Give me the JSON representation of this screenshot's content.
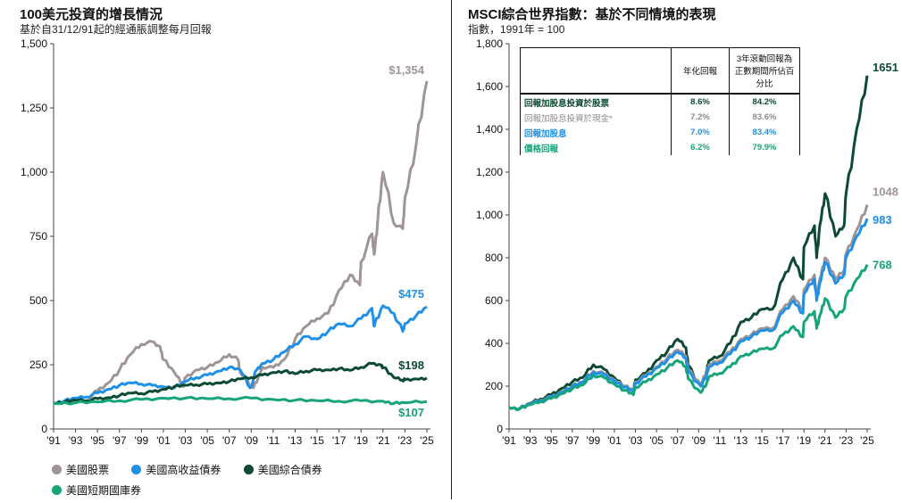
{
  "left": {
    "title": "100美元投資的增長情況",
    "subtitle": "基於自31/12/91起的經通脹調整每月回報"
  },
  "right": {
    "title": "MSCI綜合世界指數：基於不同情境的表現",
    "subtitle": "指數，1991年 = 100"
  },
  "legend": [
    {
      "label": "美國股票",
      "color": "#9e9594"
    },
    {
      "label": "美國高收益債券",
      "color": "#1e90e8"
    },
    {
      "label": "美國綜合債券",
      "color": "#0d4a32"
    },
    {
      "label": "美國短期國庫券",
      "color": "#16a57a"
    }
  ],
  "summary_table": {
    "headers": [
      "",
      "年化回報",
      "3年滾動回報為正數期間所佔百分比"
    ],
    "rows": [
      {
        "label": "回報加股息投資於股票",
        "annualized": "8.6%",
        "pct_positive": "84.2%",
        "color": "#0d4a32"
      },
      {
        "label": "回報加股息投資於現金*",
        "annualized": "7.2%",
        "pct_positive": "83.6%",
        "color": "#8f8a88"
      },
      {
        "label": "回報加股息",
        "annualized": "7.0%",
        "pct_positive": "83.4%",
        "color": "#1e90e8"
      },
      {
        "label": "價格回報",
        "annualized": "6.2%",
        "pct_positive": "79.9%",
        "color": "#16a57a"
      }
    ]
  },
  "chart_data": [
    {
      "type": "line",
      "title": "100美元投資的增長情況",
      "subtitle": "基於自31/12/91起的經通脹調整每月回報",
      "x_ticks": [
        "'91",
        "'93",
        "'95",
        "'97",
        "'99",
        "'01",
        "'03",
        "'05",
        "'07",
        "'09",
        "'11",
        "'13",
        "'15",
        "'17",
        "'19",
        "'21",
        "'23",
        "'25"
      ],
      "x_range": [
        1991,
        2025
      ],
      "ylim": [
        0,
        1500
      ],
      "y_ticks": [
        0,
        250,
        500,
        750,
        1000,
        1250,
        1500
      ],
      "y_tick_labels": [
        "0",
        "250",
        "500",
        "750",
        "1,000",
        "1,250",
        "1,500"
      ],
      "grid": false,
      "series": [
        {
          "name": "美國股票",
          "color": "#9e9594",
          "end_label": "$1,354",
          "x": [
            1991.0,
            1992,
            1993,
            1994,
            1995,
            1996,
            1997,
            1998,
            1999,
            2000,
            2000.7,
            2001,
            2002,
            2002.8,
            2003,
            2004,
            2005,
            2006,
            2007,
            2007.8,
            2008,
            2009.2,
            2009.8,
            2010,
            2011,
            2012,
            2013,
            2014,
            2015,
            2016,
            2017,
            2018,
            2018.9,
            2019,
            2020,
            2020.2,
            2020.5,
            2021,
            2022,
            2022.8,
            2023,
            2024,
            2025
          ],
          "y": [
            100,
            105,
            112,
            110,
            150,
            180,
            230,
            290,
            330,
            340,
            320,
            270,
            220,
            165,
            200,
            230,
            240,
            260,
            290,
            270,
            220,
            160,
            210,
            240,
            240,
            270,
            350,
            400,
            430,
            450,
            540,
            600,
            560,
            650,
            760,
            680,
            800,
            1000,
            800,
            780,
            900,
            1100,
            1354
          ]
        },
        {
          "name": "美國高收益債券",
          "color": "#1e90e8",
          "end_label": "$475",
          "x": [
            1991.0,
            1992,
            1993,
            1994,
            1995,
            1996,
            1997,
            1998,
            1999,
            2000,
            2001,
            2002,
            2003,
            2004,
            2005,
            2006,
            2007,
            2008,
            2008.9,
            2009.5,
            2010,
            2011,
            2012,
            2013,
            2014,
            2015,
            2016,
            2017,
            2018,
            2019,
            2020,
            2020.2,
            2021,
            2022,
            2022.8,
            2023,
            2024,
            2025
          ],
          "y": [
            100,
            110,
            120,
            125,
            140,
            155,
            170,
            180,
            175,
            170,
            165,
            160,
            185,
            200,
            210,
            225,
            240,
            230,
            160,
            230,
            255,
            270,
            300,
            330,
            360,
            350,
            380,
            410,
            400,
            430,
            470,
            400,
            480,
            450,
            380,
            410,
            440,
            475
          ]
        },
        {
          "name": "美國綜合債券",
          "color": "#0d4a32",
          "end_label": "$198",
          "x": [
            1991.0,
            1992,
            1993,
            1994,
            1995,
            1996,
            1997,
            1998,
            1999,
            2000,
            2001,
            2002,
            2003,
            2004,
            2005,
            2006,
            2007,
            2008,
            2009,
            2010,
            2011,
            2012,
            2013,
            2014,
            2015,
            2016,
            2017,
            2018,
            2019,
            2020,
            2020.8,
            2021,
            2022,
            2022.8,
            2023,
            2024,
            2025
          ],
          "y": [
            100,
            105,
            112,
            110,
            118,
            122,
            130,
            140,
            138,
            145,
            155,
            165,
            170,
            172,
            175,
            180,
            185,
            195,
            200,
            210,
            220,
            225,
            215,
            225,
            230,
            230,
            235,
            228,
            240,
            255,
            250,
            240,
            200,
            190,
            192,
            195,
            198
          ]
        },
        {
          "name": "美國短期國庫券",
          "color": "#16a57a",
          "end_label": "$107",
          "x": [
            1991.0,
            1993,
            1995,
            1997,
            1999,
            2001,
            2003,
            2005,
            2007,
            2009,
            2011,
            2013,
            2015,
            2017,
            2019,
            2021,
            2022,
            2023,
            2025
          ],
          "y": [
            100,
            102,
            105,
            110,
            115,
            120,
            120,
            118,
            118,
            120,
            115,
            112,
            110,
            108,
            110,
            108,
            100,
            102,
            107
          ]
        }
      ]
    },
    {
      "type": "line",
      "title": "MSCI綜合世界指數：基於不同情境的表現",
      "subtitle": "指數，1991年 = 100",
      "x_ticks": [
        "'91",
        "'93",
        "'95",
        "'97",
        "'99",
        "'01",
        "'03",
        "'05",
        "'07",
        "'09",
        "'11",
        "'13",
        "'15",
        "'17",
        "'19",
        "'21",
        "'23",
        "'25"
      ],
      "x_range": [
        1991,
        2025
      ],
      "ylim": [
        0,
        1800
      ],
      "y_ticks": [
        0,
        200,
        400,
        600,
        800,
        1000,
        1200,
        1400,
        1600,
        1800
      ],
      "y_tick_labels": [
        "0",
        "200",
        "400",
        "600",
        "800",
        "1,000",
        "1,200",
        "1,400",
        "1,600",
        "1,800"
      ],
      "grid": false,
      "series": [
        {
          "name": "回報加股息投資於股票",
          "color": "#0d4a32",
          "end_label": "1651",
          "x": [
            1991.0,
            1992,
            1993,
            1994,
            1995,
            1996,
            1997,
            1998,
            1999,
            2000,
            2001,
            2002,
            2002.8,
            2003,
            2004,
            2005,
            2006,
            2007,
            2007.8,
            2008,
            2009.2,
            2009.8,
            2010,
            2011,
            2012,
            2013,
            2014,
            2015,
            2016,
            2017,
            2018,
            2018.9,
            2019,
            2020,
            2020.2,
            2020.5,
            2021,
            2022,
            2022.8,
            2023,
            2024,
            2025
          ],
          "y": [
            100,
            95,
            120,
            140,
            160,
            190,
            220,
            240,
            300,
            280,
            240,
            200,
            175,
            230,
            260,
            320,
            360,
            420,
            380,
            300,
            200,
            280,
            320,
            340,
            400,
            500,
            520,
            560,
            560,
            700,
            800,
            700,
            850,
            950,
            800,
            950,
            1100,
            900,
            950,
            1100,
            1400,
            1651
          ]
        },
        {
          "name": "回報加股息投資於現金*",
          "color": "#9e9594",
          "end_label": "1048",
          "x": [
            1991.0,
            1992,
            1993,
            1994,
            1995,
            1996,
            1997,
            1998,
            1999,
            2000,
            2001,
            2002,
            2002.8,
            2003,
            2004,
            2005,
            2006,
            2007,
            2007.8,
            2008,
            2009.2,
            2009.8,
            2010,
            2011,
            2012,
            2013,
            2014,
            2015,
            2016,
            2017,
            2018,
            2018.9,
            2019,
            2020,
            2020.2,
            2020.5,
            2021,
            2022,
            2022.8,
            2023,
            2024,
            2025
          ],
          "y": [
            100,
            95,
            118,
            135,
            150,
            175,
            200,
            220,
            270,
            260,
            230,
            200,
            180,
            220,
            250,
            290,
            330,
            370,
            340,
            280,
            210,
            270,
            300,
            320,
            360,
            420,
            440,
            470,
            470,
            560,
            620,
            560,
            650,
            720,
            620,
            700,
            800,
            700,
            740,
            820,
            930,
            1048
          ]
        },
        {
          "name": "回報加股息",
          "color": "#1e90e8",
          "end_label": "983",
          "x": [
            1991.0,
            1992,
            1993,
            1994,
            1995,
            1996,
            1997,
            1998,
            1999,
            2000,
            2001,
            2002,
            2002.8,
            2003,
            2004,
            2005,
            2006,
            2007,
            2007.8,
            2008,
            2009.2,
            2009.8,
            2010,
            2011,
            2012,
            2013,
            2014,
            2015,
            2016,
            2017,
            2018,
            2018.9,
            2019,
            2020,
            2020.2,
            2020.5,
            2021,
            2022,
            2022.8,
            2023,
            2024,
            2025
          ],
          "y": [
            100,
            95,
            117,
            133,
            148,
            172,
            198,
            218,
            265,
            255,
            225,
            195,
            175,
            215,
            245,
            285,
            320,
            360,
            330,
            270,
            200,
            260,
            290,
            310,
            350,
            410,
            430,
            460,
            460,
            545,
            600,
            540,
            630,
            700,
            600,
            680,
            780,
            680,
            720,
            800,
            900,
            983
          ]
        },
        {
          "name": "價格回報",
          "color": "#16a57a",
          "end_label": "768",
          "x": [
            1991.0,
            1992,
            1993,
            1994,
            1995,
            1996,
            1997,
            1998,
            1999,
            2000,
            2001,
            2002,
            2002.8,
            2003,
            2004,
            2005,
            2006,
            2007,
            2007.8,
            2008,
            2009.2,
            2009.8,
            2010,
            2011,
            2012,
            2013,
            2014,
            2015,
            2016,
            2017,
            2018,
            2018.9,
            2019,
            2020,
            2020.2,
            2020.5,
            2021,
            2022,
            2022.8,
            2023,
            2024,
            2025
          ],
          "y": [
            100,
            93,
            113,
            128,
            142,
            165,
            188,
            205,
            250,
            240,
            210,
            180,
            160,
            195,
            220,
            255,
            285,
            320,
            290,
            235,
            170,
            220,
            245,
            260,
            290,
            340,
            355,
            375,
            375,
            440,
            480,
            430,
            500,
            550,
            470,
            530,
            610,
            520,
            560,
            620,
            700,
            768
          ]
        }
      ]
    }
  ]
}
